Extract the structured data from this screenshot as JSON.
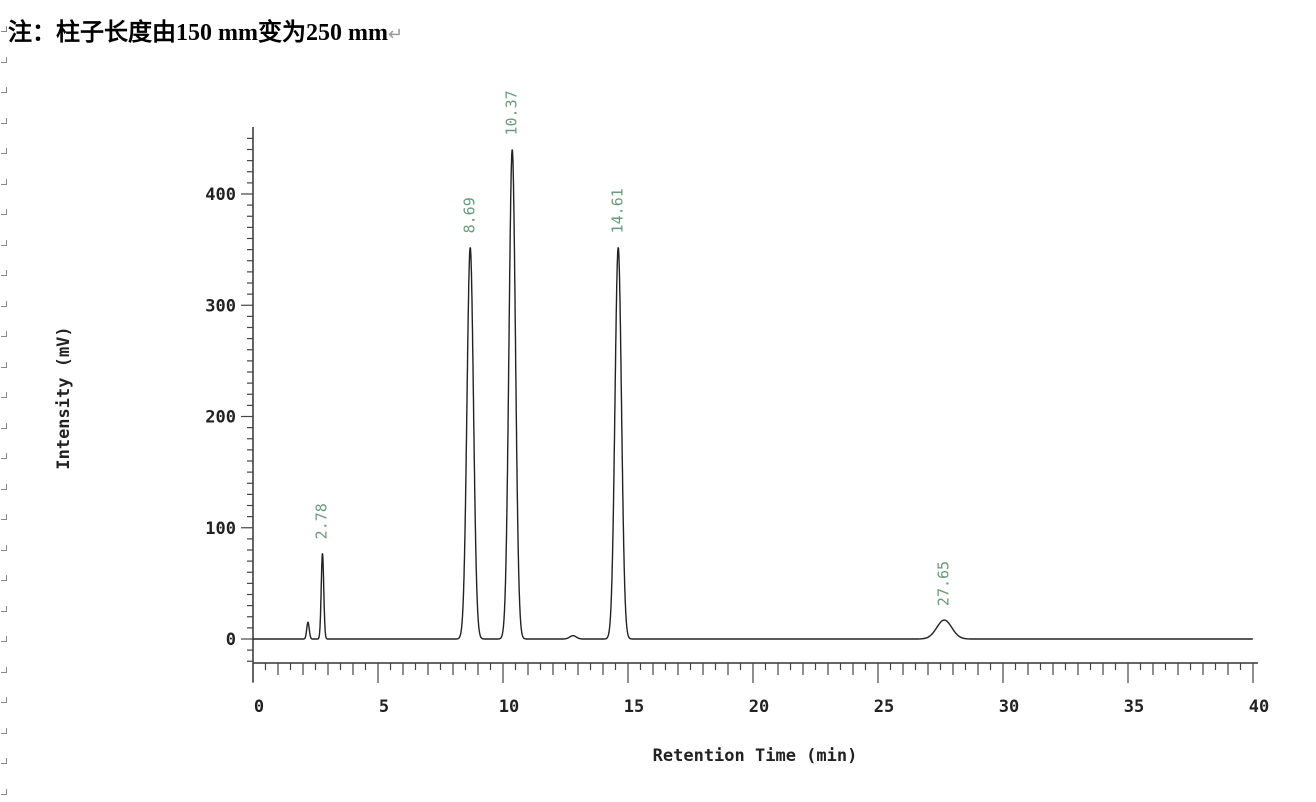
{
  "note": {
    "text": "注：柱子长度由150 mm变为250 mm",
    "return_mark": "↵"
  },
  "chart_data": {
    "type": "line",
    "title": "",
    "xlabel": "Retention Time (min)",
    "ylabel": "Intensity (mV)",
    "xlim": [
      0,
      40
    ],
    "ylim": [
      -20,
      460
    ],
    "xticks": [
      0,
      5,
      10,
      15,
      20,
      25,
      30,
      35,
      40
    ],
    "yticks": [
      0,
      100,
      200,
      300,
      400
    ],
    "grid": false,
    "line_color": "#222222",
    "label_color": "#6a9a7a",
    "peaks": [
      {
        "rt": 2.2,
        "height": 15,
        "label": ""
      },
      {
        "rt": 2.78,
        "height": 77,
        "label": "2.78"
      },
      {
        "rt": 8.69,
        "height": 352,
        "label": "8.69"
      },
      {
        "rt": 10.37,
        "height": 440,
        "label": "10.37"
      },
      {
        "rt": 12.8,
        "height": 3,
        "label": ""
      },
      {
        "rt": 14.61,
        "height": 352,
        "label": "14.61"
      },
      {
        "rt": 27.65,
        "height": 17,
        "label": "27.65"
      }
    ]
  }
}
